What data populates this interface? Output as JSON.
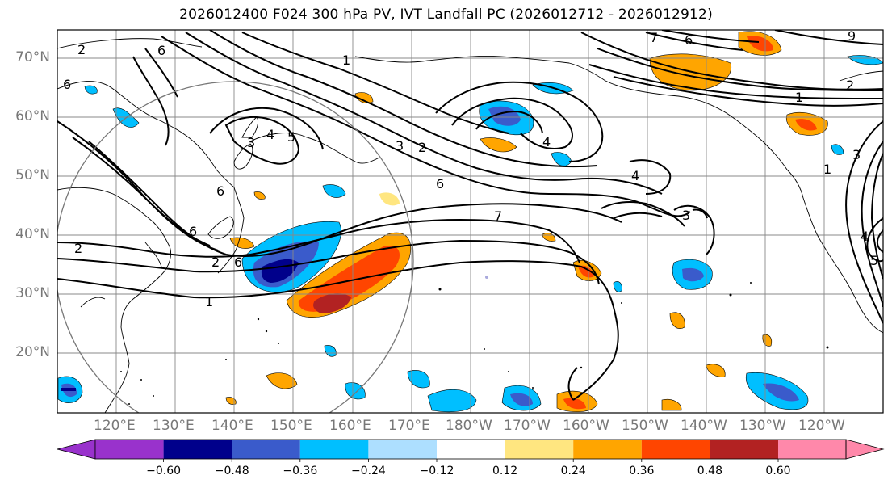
{
  "title": "2026012400 F024 300 hPa PV, IVT Landfall PC (2026012712 - 2026012912)",
  "latitude_labels": [
    "70°N",
    "60°N",
    "50°N",
    "40°N",
    "30°N",
    "20°N"
  ],
  "longitude_labels": [
    "120°E",
    "130°E",
    "140°E",
    "150°E",
    "160°E",
    "170°E",
    "180°W",
    "170°W",
    "160°W",
    "150°W",
    "140°W",
    "130°W",
    "120°W"
  ],
  "colorbar": {
    "tick_labels": [
      "−0.60",
      "−0.48",
      "−0.36",
      "−0.24",
      "−0.12",
      "0.12",
      "0.24",
      "0.36",
      "0.48",
      "0.60"
    ],
    "colors": [
      "#9932CC",
      "#00008B",
      "#3A5BCB",
      "#00BFFF",
      "#ADDFFF",
      "#FFFFFF",
      "#FFE680",
      "#FFA500",
      "#FF4500",
      "#B22222",
      "#FF88AA"
    ]
  },
  "contour_labels": [
    "2",
    "6",
    "1",
    "7",
    "6",
    "6",
    "1",
    "3",
    "5",
    "3",
    "4",
    "3",
    "2",
    "4",
    "6",
    "7",
    "4",
    "3",
    "2",
    "6",
    "6",
    "2",
    "6",
    "1",
    "1",
    "2",
    "5",
    "4",
    "9"
  ]
}
